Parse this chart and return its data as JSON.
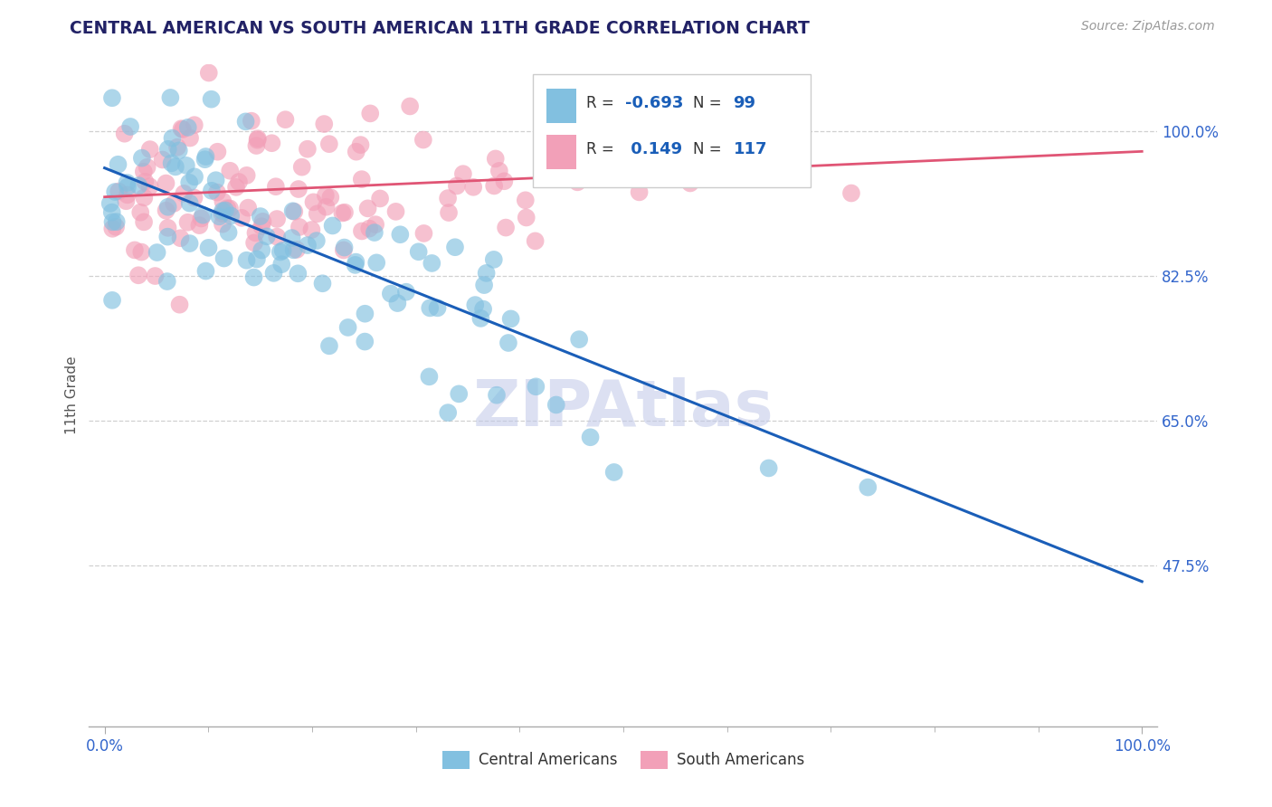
{
  "title": "CENTRAL AMERICAN VS SOUTH AMERICAN 11TH GRADE CORRELATION CHART",
  "source": "Source: ZipAtlas.com",
  "ylabel": "11th Grade",
  "watermark": "ZIPAtlas",
  "blue_R": -0.693,
  "blue_N": 99,
  "pink_R": 0.149,
  "pink_N": 117,
  "blue_color": "#82c0e0",
  "pink_color": "#f2a0b8",
  "blue_line_color": "#1a5eb8",
  "pink_line_color": "#e05575",
  "title_color": "#222266",
  "axis_label_color": "#3366cc",
  "ylabel_color": "#555555",
  "source_color": "#999999",
  "watermark_color": "#c0c8e8",
  "xlim": [
    0.0,
    1.0
  ],
  "ylim": [
    0.28,
    1.08
  ],
  "y_ticks": [
    0.475,
    0.65,
    0.825,
    1.0
  ],
  "y_tick_labels": [
    "47.5%",
    "65.0%",
    "82.5%",
    "100.0%"
  ],
  "blue_line_y0": 0.955,
  "blue_line_y1": 0.455,
  "pink_line_y0": 0.92,
  "pink_line_y1": 0.975
}
